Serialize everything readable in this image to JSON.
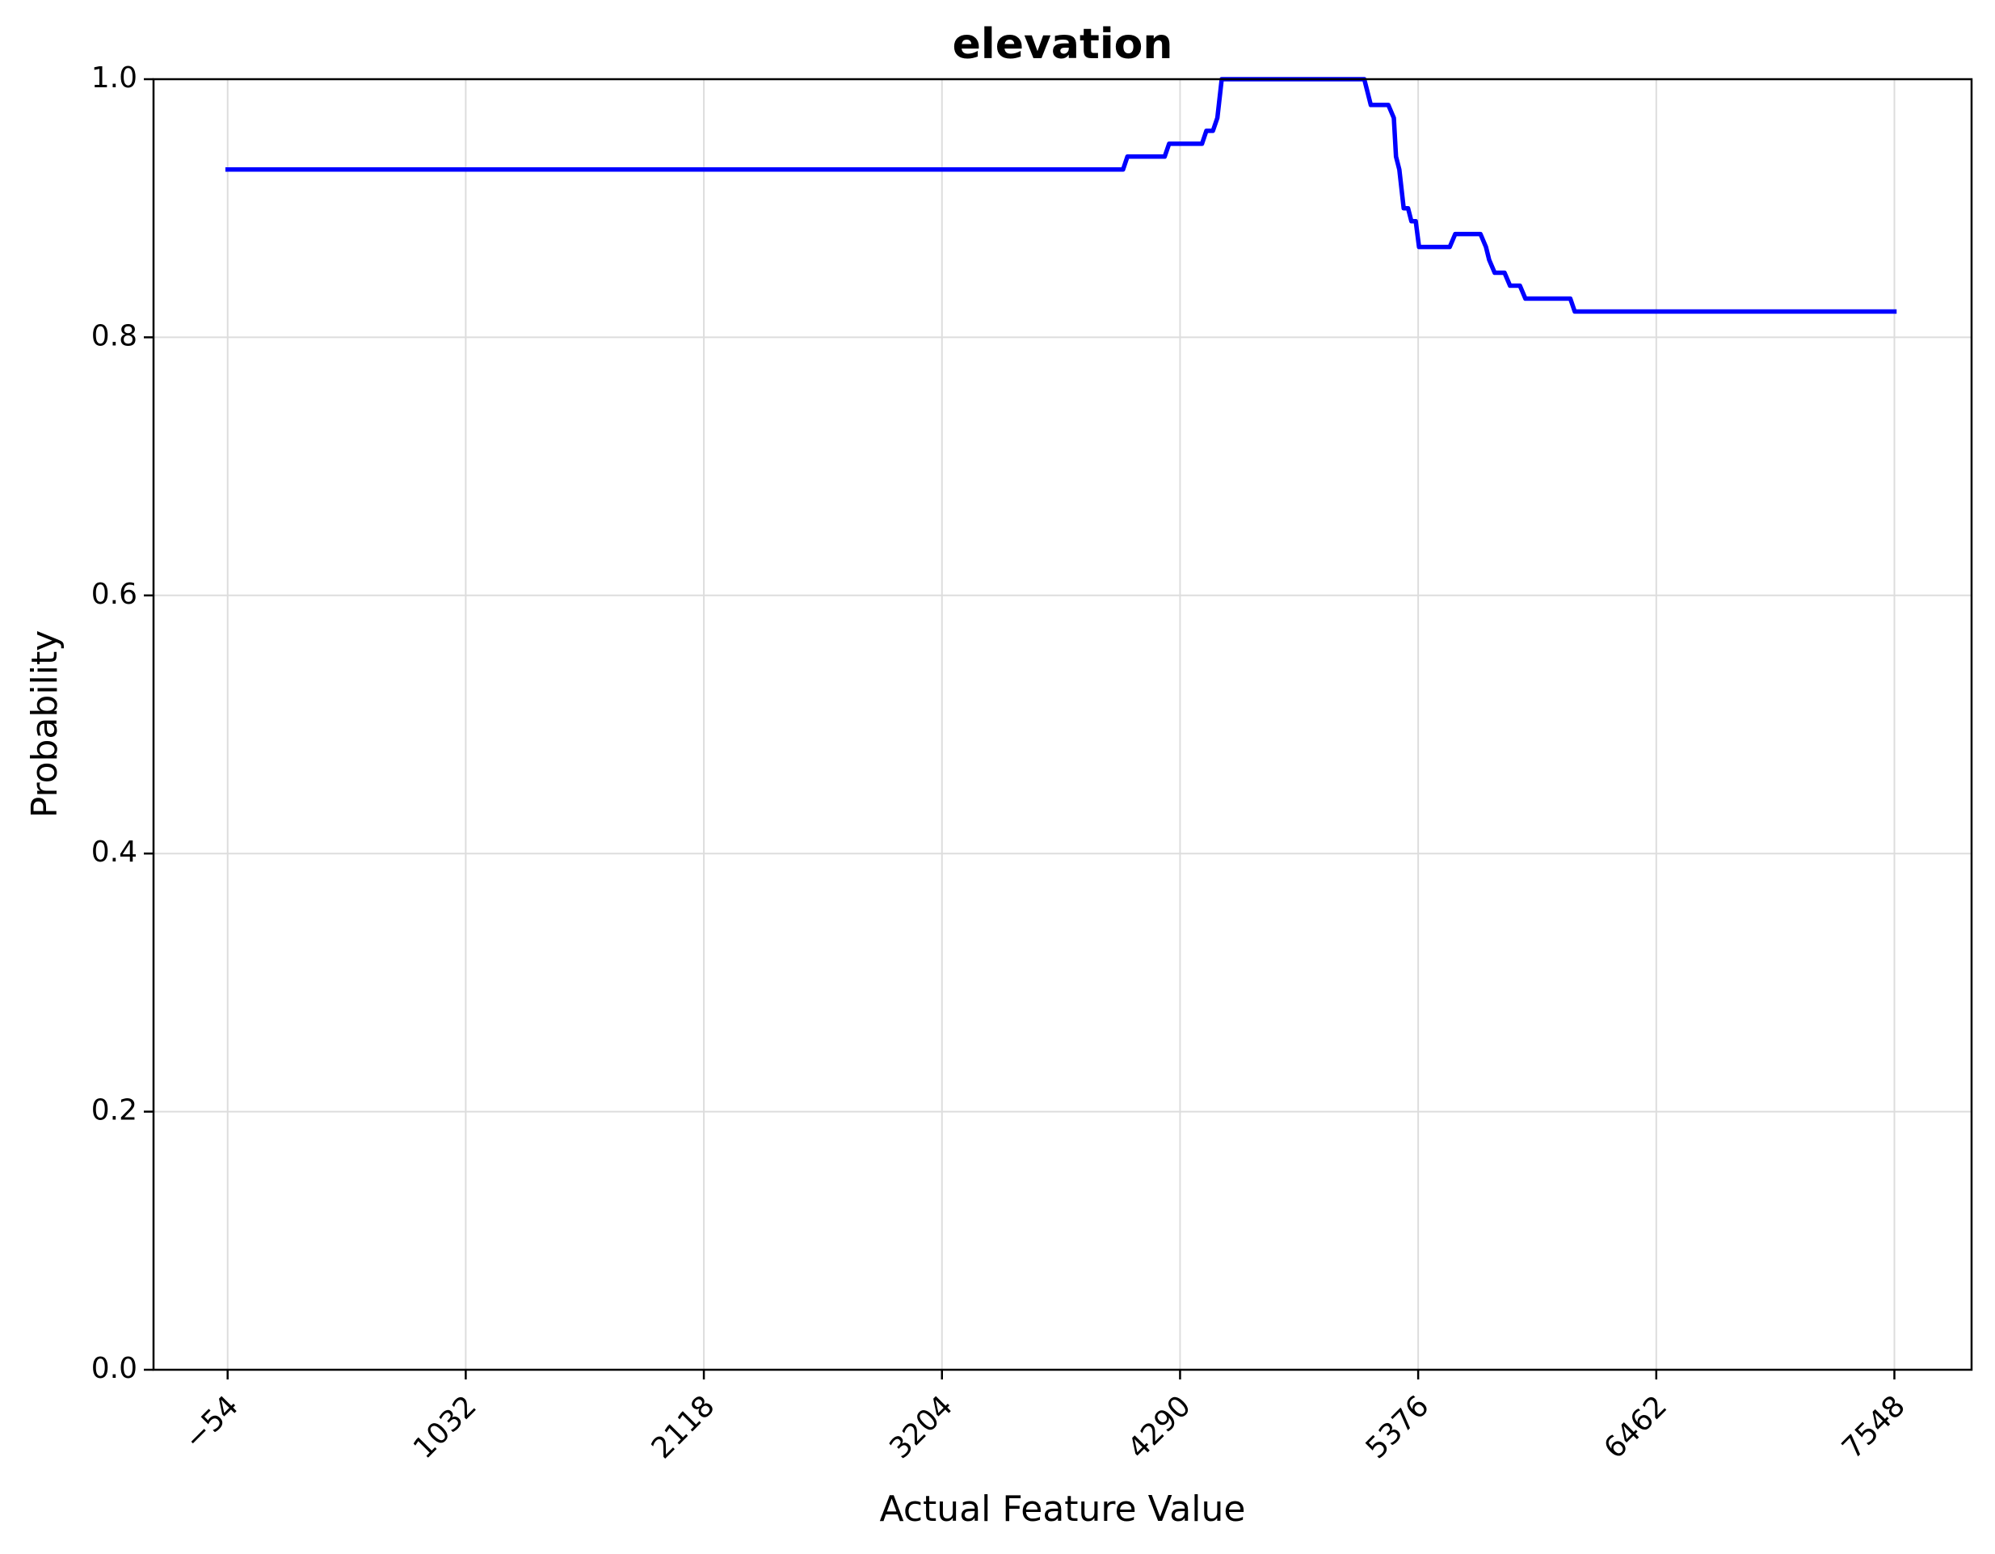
{
  "chart_data": {
    "type": "line",
    "title": "elevation",
    "xlabel": "Actual Feature Value",
    "ylabel": "Probability",
    "xlim": [
      -392,
      7900
    ],
    "ylim": [
      0.0,
      1.0
    ],
    "xticks": [
      -54,
      1032,
      2118,
      3204,
      4290,
      5376,
      6462,
      7548
    ],
    "xtick_labels": [
      "−54",
      "1032",
      "2118",
      "3204",
      "4290",
      "5376",
      "6462",
      "7548"
    ],
    "yticks": [
      0.0,
      0.2,
      0.4,
      0.6,
      0.8,
      1.0
    ],
    "ytick_labels": [
      "0.0",
      "0.2",
      "0.4",
      "0.6",
      "0.8",
      "1.0"
    ],
    "grid": true,
    "series": [
      {
        "color": "#0000ff",
        "x": [
          -54,
          4030,
          4050,
          4220,
          4240,
          4390,
          4410,
          4440,
          4460,
          4480,
          4500,
          4520,
          5130,
          5160,
          5240,
          5265,
          5275,
          5290,
          5310,
          5330,
          5345,
          5365,
          5380,
          5420,
          5520,
          5545,
          5560,
          5660,
          5685,
          5700,
          5725,
          5770,
          5795,
          5840,
          5865,
          5900,
          6070,
          6090,
          7548
        ],
        "y": [
          0.93,
          0.93,
          0.94,
          0.94,
          0.95,
          0.95,
          0.96,
          0.96,
          0.97,
          1.0,
          1.0,
          1.0,
          1.0,
          0.98,
          0.98,
          0.97,
          0.94,
          0.93,
          0.9,
          0.9,
          0.89,
          0.89,
          0.87,
          0.87,
          0.87,
          0.88,
          0.88,
          0.88,
          0.87,
          0.86,
          0.85,
          0.85,
          0.84,
          0.84,
          0.83,
          0.83,
          0.83,
          0.82,
          0.82
        ]
      }
    ]
  }
}
